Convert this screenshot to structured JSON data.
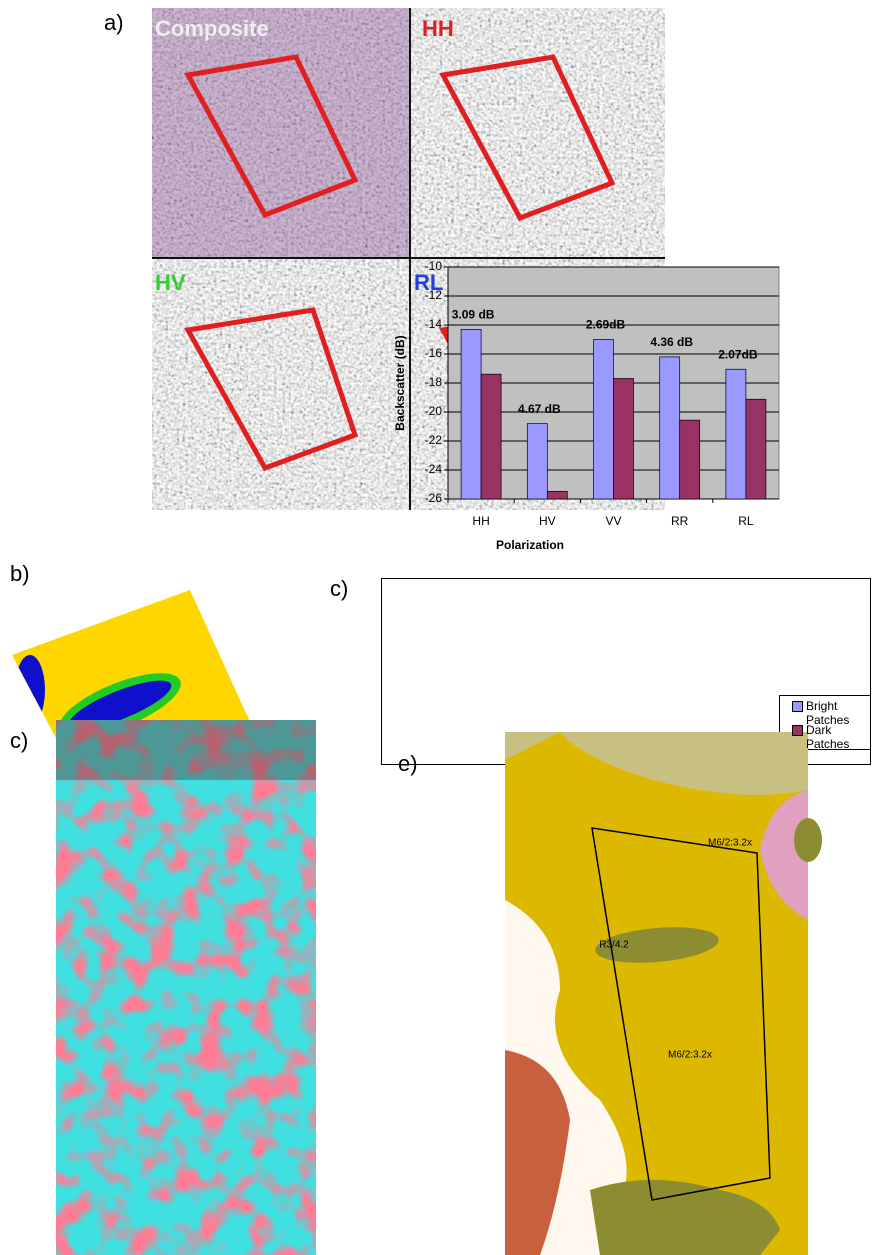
{
  "chart_data": {
    "type": "bar",
    "x_label": "Polarization",
    "y_label": "Backscatter (dB)",
    "categories": [
      "HH",
      "HV",
      "VV",
      "RR",
      "RL"
    ],
    "series": [
      {
        "name": "Bright Patches",
        "color": "#9999ff",
        "values": [
          -14.3,
          -20.8,
          -15.0,
          -16.2,
          -17.05
        ]
      },
      {
        "name": "Dark Patches",
        "color": "#993366",
        "values": [
          -17.39,
          -25.47,
          -17.69,
          -20.56,
          -19.12
        ]
      }
    ],
    "annotations": [
      "3.09 dB",
      "4.67 dB",
      "2.69dB",
      "4.36 dB",
      "2.07dB"
    ],
    "ylim": [
      -26,
      -10
    ],
    "yticks": [
      -26,
      -24,
      -22,
      -20,
      -18,
      -16,
      -14,
      -12,
      -10
    ],
    "grid": true,
    "plot_background": "#c0c0c0",
    "legend": "right"
  },
  "figure": {
    "panel_labels": [
      "a)",
      "b)",
      "c)",
      "c)",
      "e)"
    ],
    "image_labels": [
      "Composite",
      "HH",
      "HV",
      "RL"
    ],
    "map_labels": [
      "M6/2:3.2x",
      "R3/4.2",
      "M6/2:3.2x"
    ]
  }
}
